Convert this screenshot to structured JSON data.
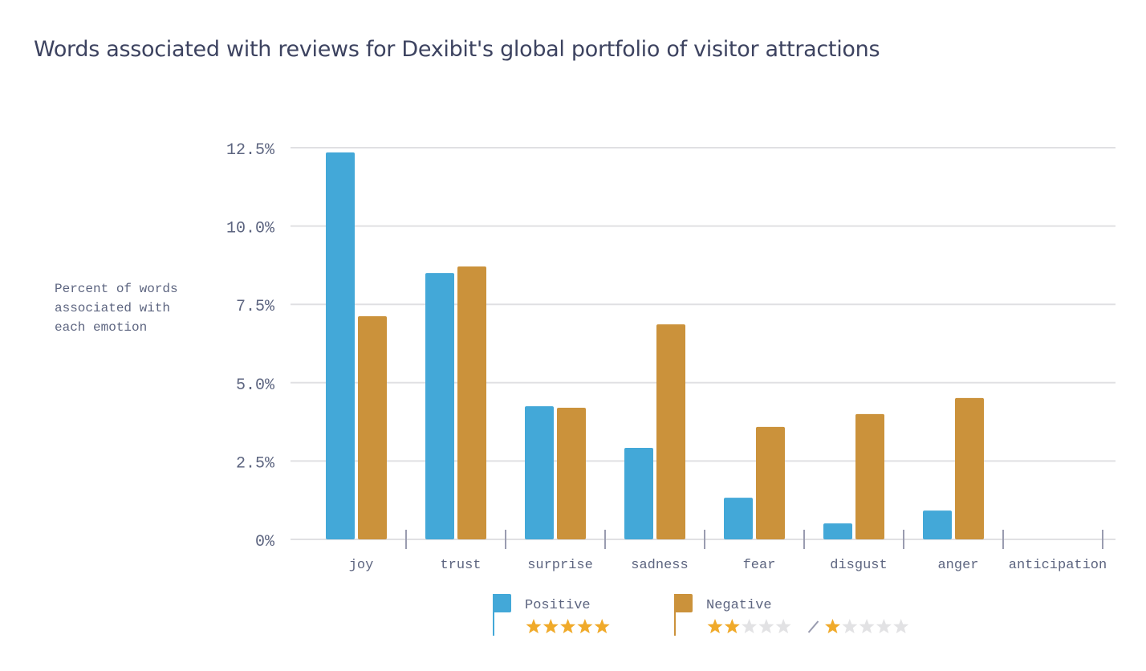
{
  "chart_data": {
    "type": "bar",
    "title": "Words associated with reviews for Dexibit's global portfolio of visitor attractions",
    "ylabel": "Percent of words associated with each emotion",
    "xlabel": "",
    "ylim": [
      0,
      12.5
    ],
    "yticks": [
      "0%",
      "2.5%",
      "5.0%",
      "7.5%",
      "10.0%",
      "12.5%"
    ],
    "ytick_values": [
      0,
      2.5,
      5,
      7.5,
      10,
      12.5
    ],
    "grid": true,
    "legend_placement": "bottom",
    "categories": [
      "joy",
      "trust",
      "surprise",
      "sadness",
      "fear",
      "disgust",
      "anger",
      "anticipation"
    ],
    "series": [
      {
        "name": "Positive",
        "color": "#43a8d8",
        "values": [
          12.35,
          8.5,
          4.25,
          2.92,
          1.33,
          0.51,
          0.92,
          null
        ]
      },
      {
        "name": "Negative",
        "color": "#cb923b",
        "values": [
          7.12,
          8.71,
          4.2,
          6.86,
          3.59,
          4.0,
          4.51,
          null
        ]
      }
    ],
    "legend_ratings": {
      "Positive": "5 of 5 stars",
      "Negative": "2 of 5 stars / 1 of 5 stars"
    },
    "legend_separator": "/",
    "star_color": "#f0aa2a",
    "star_empty_color": "#e2e2e4"
  }
}
